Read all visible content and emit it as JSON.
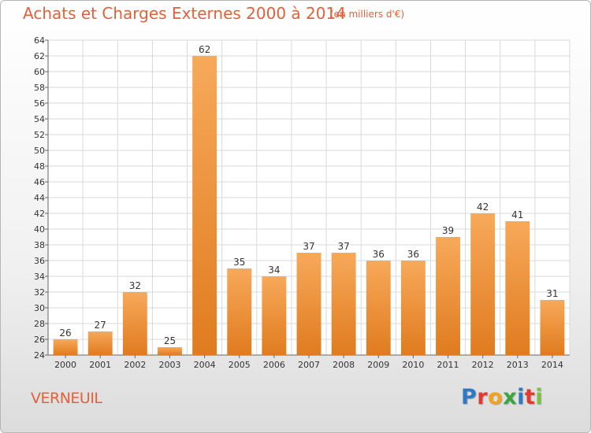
{
  "title": "Achats et Charges Externes 2000 à 2014",
  "unit": "(en milliers d'€)",
  "commune": "VERNEUIL",
  "logo": {
    "text": "Proxiti",
    "colors": [
      "#2f78c4",
      "#e23a2e",
      "#f2a21f",
      "#3aa63a",
      "#2f78c4",
      "#e23a2e",
      "#7cc242"
    ]
  },
  "colors": {
    "bar_light": "#f7a95a",
    "bar_dark": "#e07b1f",
    "title": "#e2603a",
    "grid": "#d9d9d9"
  },
  "chart_data": {
    "type": "bar",
    "title": "Achats et Charges Externes 2000 à 2014",
    "subtitle": "(en milliers d'€)",
    "xlabel": "",
    "ylabel": "",
    "categories": [
      "2000",
      "2001",
      "2002",
      "2003",
      "2004",
      "2005",
      "2006",
      "2007",
      "2008",
      "2009",
      "2010",
      "2011",
      "2012",
      "2013",
      "2014"
    ],
    "values": [
      26,
      27,
      32,
      25,
      62,
      35,
      34,
      37,
      37,
      36,
      36,
      39,
      42,
      41,
      31
    ],
    "ylim": [
      24,
      64
    ],
    "ytick_step": 2,
    "grid": true,
    "data_labels": true
  }
}
